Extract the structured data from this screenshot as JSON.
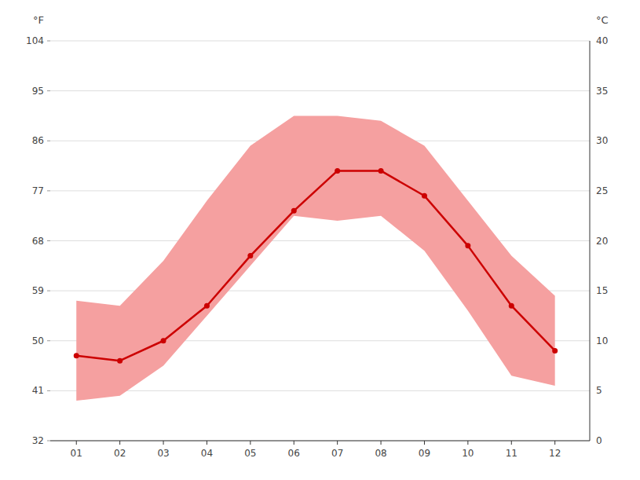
{
  "chart_data": {
    "type": "line",
    "y_label": "°C",
    "y2_label": "°F",
    "x": [
      1,
      2,
      3,
      4,
      5,
      6,
      7,
      8,
      9,
      10,
      11,
      12
    ],
    "xlim": [
      0.4,
      12.8
    ],
    "xticks": [
      {
        "value": 1,
        "label": "01"
      },
      {
        "value": 2,
        "label": "02"
      },
      {
        "value": 3,
        "label": "03"
      },
      {
        "value": 4,
        "label": "04"
      },
      {
        "value": 5,
        "label": "05"
      },
      {
        "value": 6,
        "label": "06"
      },
      {
        "value": 7,
        "label": "07"
      },
      {
        "value": 8,
        "label": "08"
      },
      {
        "value": 9,
        "label": "09"
      },
      {
        "value": 10,
        "label": "10"
      },
      {
        "value": 11,
        "label": "11"
      },
      {
        "value": 12,
        "label": "12"
      }
    ],
    "ylim": [
      0,
      40
    ],
    "yticks": [
      0,
      5,
      10,
      15,
      20,
      25,
      30,
      35,
      40
    ],
    "y2lim": [
      32,
      104
    ],
    "y2ticks": [
      32,
      41,
      50,
      59,
      68,
      77,
      86,
      95,
      104
    ],
    "grid": true,
    "series": [
      {
        "type": "area",
        "color": "#f5a0a0",
        "low": [
          4.0,
          4.5,
          7.5,
          12.5,
          17.5,
          22.5,
          22.0,
          22.5,
          19.0,
          13.0,
          6.5,
          5.5
        ],
        "high": [
          14.0,
          13.5,
          18.0,
          24.0,
          29.5,
          32.5,
          32.5,
          32.0,
          29.5,
          24.0,
          18.5,
          14.5
        ]
      },
      {
        "type": "line",
        "color": "#cc0000",
        "marker": "circle",
        "values": [
          8.5,
          8.0,
          10.0,
          13.5,
          18.5,
          23.0,
          27.0,
          27.0,
          24.5,
          19.5,
          13.5,
          9.0
        ]
      }
    ]
  }
}
